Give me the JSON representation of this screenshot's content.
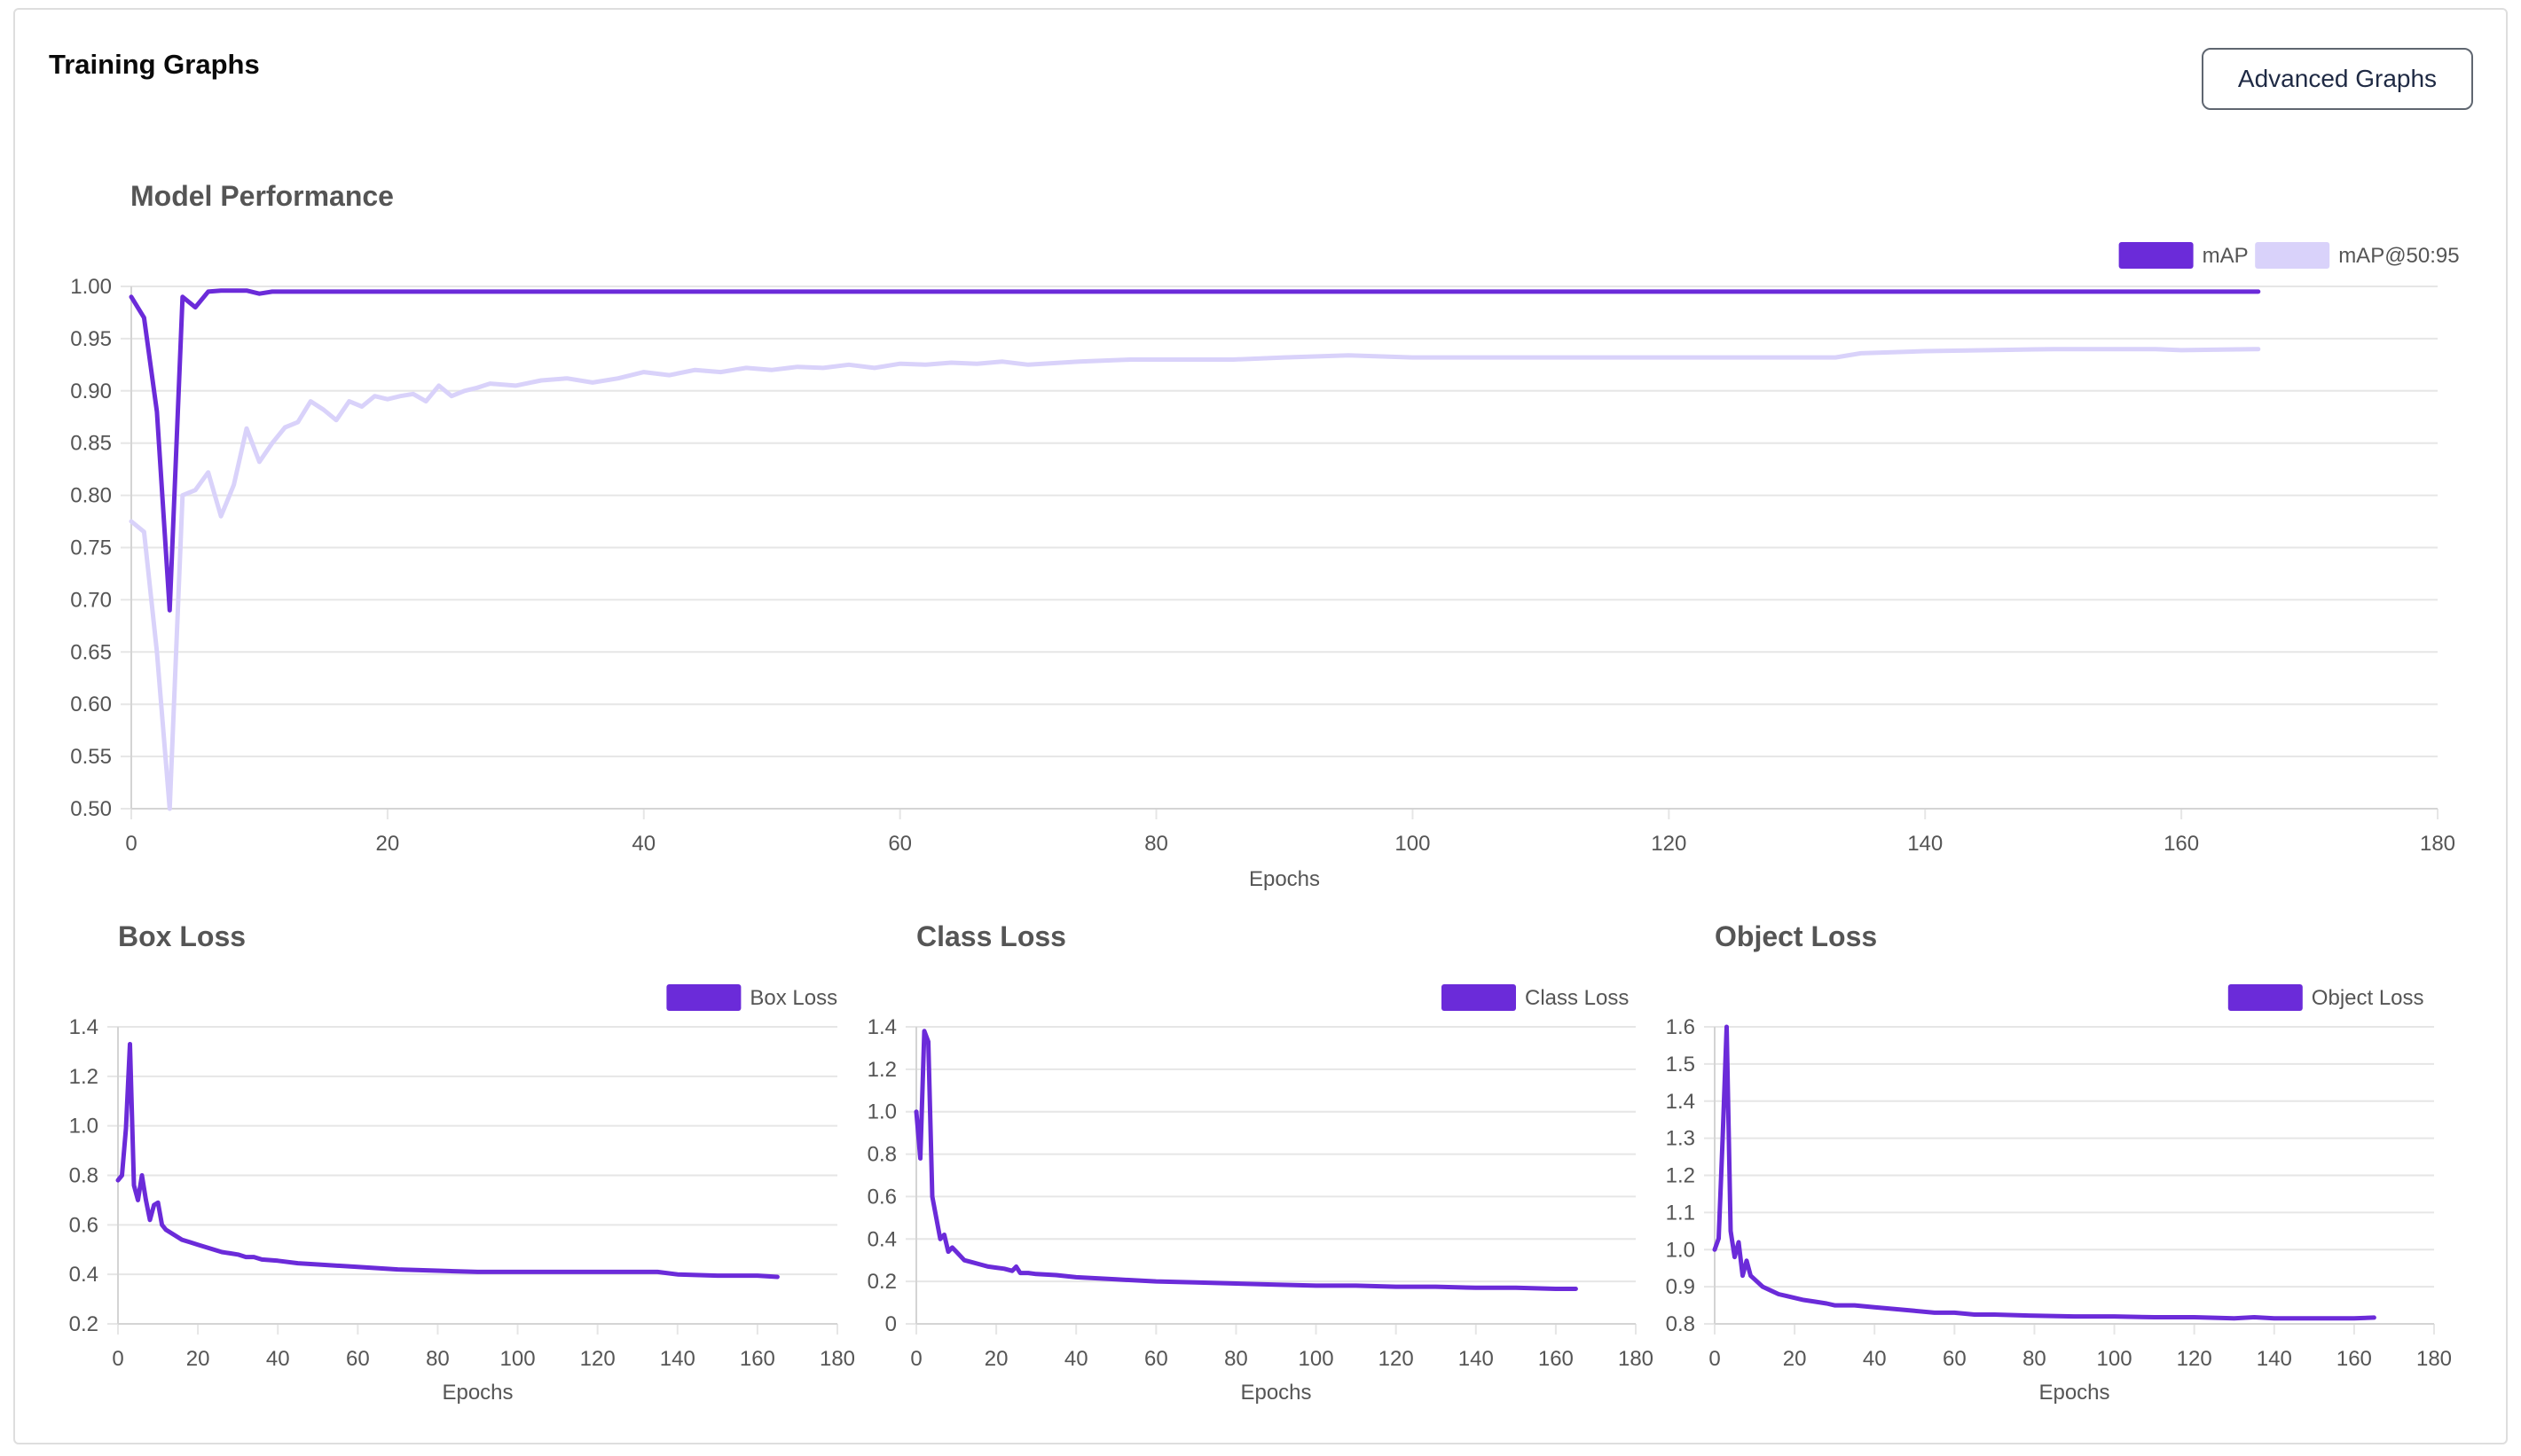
{
  "header": {
    "title": "Training Graphs",
    "advanced_button": "Advanced Graphs"
  },
  "colors": {
    "primary": "#6b2bd9",
    "secondary": "#d9d2fa",
    "grid": "#e6e6e6",
    "axis_text": "#555555",
    "title_text": "#555555"
  },
  "chart_data": [
    {
      "id": "performance",
      "type": "line",
      "title": "Model Performance",
      "xlabel": "Epochs",
      "ylabel": "",
      "xlim": [
        0,
        180
      ],
      "ylim": [
        0.5,
        1.0
      ],
      "xticks": [
        0,
        20,
        40,
        60,
        80,
        100,
        120,
        140,
        160,
        180
      ],
      "yticks": [
        0.5,
        0.55,
        0.6,
        0.65,
        0.7,
        0.75,
        0.8,
        0.85,
        0.9,
        0.95,
        1.0
      ],
      "ytick_labels": [
        "0.50",
        "0.55",
        "0.60",
        "0.65",
        "0.70",
        "0.75",
        "0.80",
        "0.85",
        "0.90",
        "0.95",
        "1.00"
      ],
      "legend": "top-right",
      "series": [
        {
          "name": "mAP",
          "x": [
            0,
            1,
            2,
            3,
            4,
            5,
            6,
            7,
            8,
            9,
            10,
            11,
            12,
            15,
            20,
            40,
            60,
            80,
            100,
            120,
            140,
            160,
            166
          ],
          "y": [
            0.99,
            0.97,
            0.88,
            0.69,
            0.99,
            0.98,
            0.995,
            0.996,
            0.996,
            0.996,
            0.993,
            0.995,
            0.995,
            0.995,
            0.995,
            0.995,
            0.995,
            0.995,
            0.995,
            0.995,
            0.995,
            0.995,
            0.995
          ]
        },
        {
          "name": "mAP@50:95",
          "x": [
            0,
            1,
            2,
            3,
            4,
            5,
            6,
            7,
            8,
            9,
            10,
            11,
            12,
            13,
            14,
            15,
            16,
            17,
            18,
            19,
            20,
            21,
            22,
            23,
            24,
            25,
            26,
            27,
            28,
            30,
            32,
            34,
            36,
            38,
            40,
            42,
            44,
            46,
            48,
            50,
            52,
            54,
            56,
            58,
            60,
            62,
            64,
            66,
            68,
            70,
            74,
            78,
            82,
            86,
            90,
            95,
            100,
            105,
            110,
            115,
            120,
            125,
            130,
            133,
            135,
            140,
            145,
            150,
            155,
            158,
            160,
            166
          ],
          "y": [
            0.775,
            0.765,
            0.65,
            0.5,
            0.8,
            0.805,
            0.822,
            0.78,
            0.81,
            0.864,
            0.832,
            0.85,
            0.865,
            0.87,
            0.89,
            0.882,
            0.872,
            0.89,
            0.885,
            0.895,
            0.892,
            0.895,
            0.897,
            0.89,
            0.905,
            0.895,
            0.9,
            0.903,
            0.907,
            0.905,
            0.91,
            0.912,
            0.908,
            0.912,
            0.918,
            0.915,
            0.92,
            0.918,
            0.922,
            0.92,
            0.923,
            0.922,
            0.925,
            0.922,
            0.926,
            0.925,
            0.927,
            0.926,
            0.928,
            0.925,
            0.928,
            0.93,
            0.93,
            0.93,
            0.932,
            0.934,
            0.932,
            0.932,
            0.932,
            0.932,
            0.932,
            0.932,
            0.932,
            0.932,
            0.936,
            0.938,
            0.939,
            0.94,
            0.94,
            0.94,
            0.939,
            0.94
          ]
        }
      ]
    },
    {
      "id": "box_loss",
      "type": "line",
      "title": "Box Loss",
      "xlabel": "Epochs",
      "ylabel": "",
      "xlim": [
        0,
        180
      ],
      "ylim": [
        0.2,
        1.4
      ],
      "xticks": [
        0,
        20,
        40,
        60,
        80,
        100,
        120,
        140,
        160,
        180
      ],
      "yticks": [
        0.2,
        0.4,
        0.6,
        0.8,
        1.0,
        1.2,
        1.4
      ],
      "ytick_labels": [
        "0.2",
        "0.4",
        "0.6",
        "0.8",
        "1.0",
        "1.2",
        "1.4"
      ],
      "legend": "top-right",
      "series": [
        {
          "name": "Box Loss",
          "x": [
            0,
            1,
            2,
            3,
            4,
            5,
            6,
            7,
            8,
            9,
            10,
            11,
            12,
            14,
            16,
            18,
            20,
            22,
            24,
            26,
            28,
            30,
            32,
            34,
            36,
            40,
            45,
            50,
            60,
            70,
            80,
            90,
            100,
            110,
            120,
            130,
            135,
            140,
            150,
            160,
            165
          ],
          "y": [
            0.78,
            0.8,
            0.99,
            1.33,
            0.76,
            0.7,
            0.8,
            0.7,
            0.62,
            0.68,
            0.69,
            0.6,
            0.58,
            0.56,
            0.54,
            0.53,
            0.52,
            0.51,
            0.5,
            0.49,
            0.485,
            0.48,
            0.47,
            0.47,
            0.46,
            0.455,
            0.445,
            0.44,
            0.43,
            0.42,
            0.415,
            0.41,
            0.41,
            0.41,
            0.41,
            0.41,
            0.41,
            0.4,
            0.395,
            0.395,
            0.39
          ]
        }
      ]
    },
    {
      "id": "class_loss",
      "type": "line",
      "title": "Class Loss",
      "xlabel": "Epochs",
      "ylabel": "",
      "xlim": [
        0,
        180
      ],
      "ylim": [
        0,
        1.4
      ],
      "xticks": [
        0,
        20,
        40,
        60,
        80,
        100,
        120,
        140,
        160,
        180
      ],
      "yticks": [
        0,
        0.2,
        0.4,
        0.6,
        0.8,
        1.0,
        1.2,
        1.4
      ],
      "ytick_labels": [
        "0",
        "0.2",
        "0.4",
        "0.6",
        "0.8",
        "1.0",
        "1.2",
        "1.4"
      ],
      "legend": "top-right",
      "series": [
        {
          "name": "Class Loss",
          "x": [
            0,
            1,
            2,
            3,
            4,
            5,
            6,
            7,
            8,
            9,
            10,
            12,
            14,
            16,
            18,
            20,
            22,
            24,
            25,
            26,
            28,
            30,
            35,
            40,
            50,
            60,
            70,
            80,
            90,
            100,
            110,
            120,
            130,
            140,
            150,
            160,
            165
          ],
          "y": [
            1.0,
            0.78,
            1.38,
            1.33,
            0.6,
            0.5,
            0.4,
            0.42,
            0.34,
            0.36,
            0.34,
            0.3,
            0.29,
            0.28,
            0.27,
            0.265,
            0.26,
            0.25,
            0.27,
            0.24,
            0.24,
            0.235,
            0.23,
            0.22,
            0.21,
            0.2,
            0.195,
            0.19,
            0.185,
            0.18,
            0.18,
            0.175,
            0.175,
            0.17,
            0.17,
            0.165,
            0.165
          ]
        }
      ]
    },
    {
      "id": "object_loss",
      "type": "line",
      "title": "Object Loss",
      "xlabel": "Epochs",
      "ylabel": "",
      "xlim": [
        0,
        180
      ],
      "ylim": [
        0.8,
        1.6
      ],
      "xticks": [
        0,
        20,
        40,
        60,
        80,
        100,
        120,
        140,
        160,
        180
      ],
      "yticks": [
        0.8,
        0.9,
        1.0,
        1.1,
        1.2,
        1.3,
        1.4,
        1.5,
        1.6
      ],
      "ytick_labels": [
        "0.8",
        "0.9",
        "1.0",
        "1.1",
        "1.2",
        "1.3",
        "1.4",
        "1.5",
        "1.6"
      ],
      "legend": "top-right",
      "series": [
        {
          "name": "Object Loss",
          "x": [
            0,
            1,
            2,
            3,
            4,
            5,
            6,
            7,
            8,
            9,
            10,
            12,
            14,
            16,
            18,
            20,
            22,
            25,
            28,
            30,
            35,
            40,
            45,
            50,
            55,
            60,
            65,
            70,
            80,
            90,
            100,
            110,
            120,
            130,
            135,
            140,
            150,
            160,
            165
          ],
          "y": [
            1.0,
            1.03,
            1.3,
            1.6,
            1.05,
            0.98,
            1.02,
            0.93,
            0.97,
            0.93,
            0.92,
            0.9,
            0.89,
            0.88,
            0.875,
            0.87,
            0.865,
            0.86,
            0.855,
            0.85,
            0.85,
            0.845,
            0.84,
            0.835,
            0.83,
            0.83,
            0.825,
            0.825,
            0.822,
            0.82,
            0.82,
            0.818,
            0.818,
            0.815,
            0.818,
            0.815,
            0.815,
            0.815,
            0.817
          ]
        }
      ]
    }
  ]
}
